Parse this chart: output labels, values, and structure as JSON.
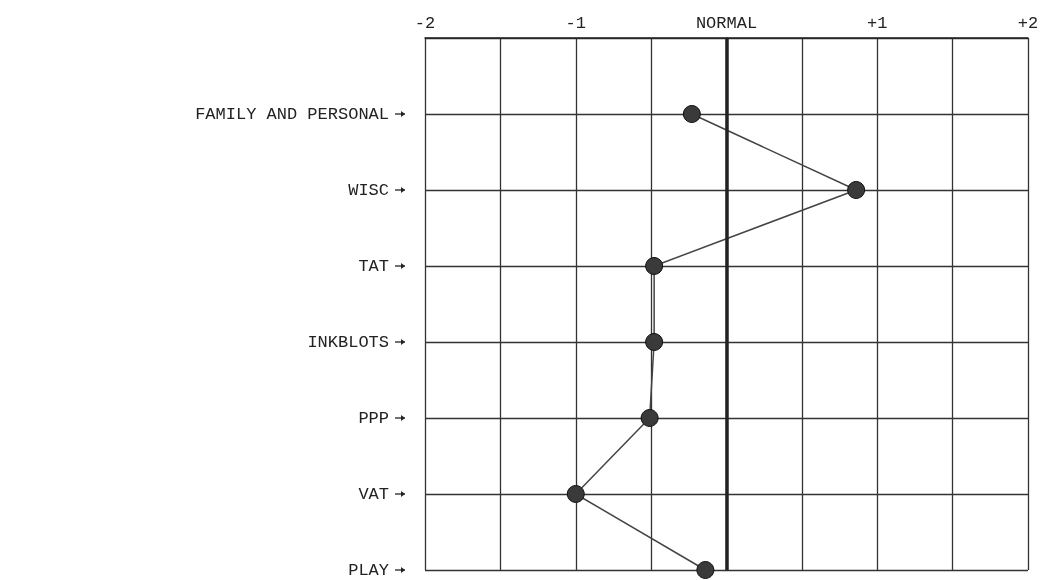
{
  "chart_data": {
    "type": "line",
    "orientation": "horizontal",
    "categories": [
      null,
      "FAMILY AND PERSONAL",
      "WISC",
      "TAT",
      "INKBLOTS",
      "PPP",
      "VAT",
      "PLAY"
    ],
    "values": [
      null,
      -0.23,
      0.86,
      -0.48,
      -0.48,
      -0.51,
      -1.0,
      -0.14
    ],
    "color": "#3a3a3a",
    "marker": "circle",
    "line_style": "solid",
    "grid": true,
    "xlim": [
      -2,
      2
    ],
    "xticks": [
      {
        "value": -2,
        "label": "-2"
      },
      {
        "value": -1.5,
        "label": null
      },
      {
        "value": -1,
        "label": "-1"
      },
      {
        "value": -0.5,
        "label": null
      },
      {
        "value": 0,
        "label": "NORMAL"
      },
      {
        "value": 0.5,
        "label": null
      },
      {
        "value": 1,
        "label": "+1"
      },
      {
        "value": 1.5,
        "label": null
      },
      {
        "value": 2,
        "label": "+2"
      }
    ],
    "ref_lines": [
      {
        "axis": "x",
        "value": 0,
        "color": "#222222"
      }
    ]
  }
}
